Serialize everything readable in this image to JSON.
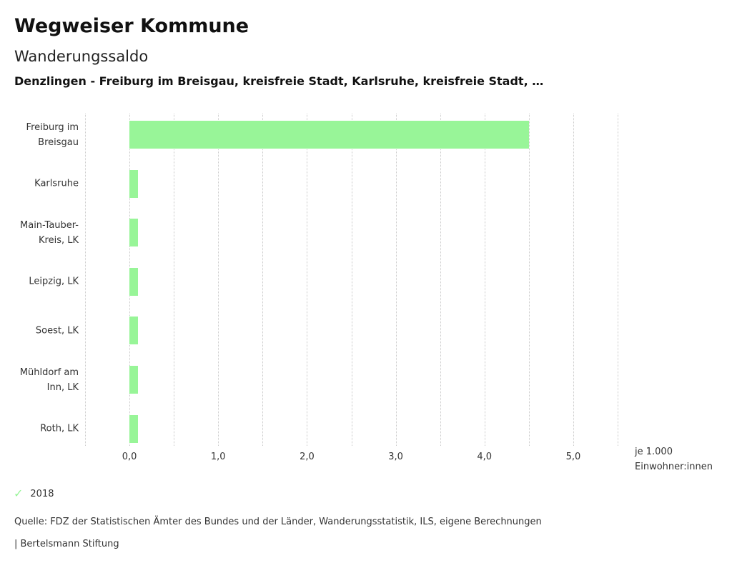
{
  "header": {
    "title": "Wegweiser Kommune",
    "subtitle": "Wanderungssaldo",
    "comparison": "Denzlingen - Freiburg im Breisgau, kreisfreie Stadt, Karlsruhe, kreisfreie Stadt, …"
  },
  "chart_data": {
    "type": "bar",
    "orientation": "horizontal",
    "title": "Wanderungssaldo",
    "categories": [
      "Freiburg im Breisgau",
      "Karlsruhe",
      "Main-Tauber-Kreis, LK",
      "Leipzig, LK",
      "Soest, LK",
      "Mühldorf am Inn, LK",
      "Roth, LK"
    ],
    "series": [
      {
        "name": "2018",
        "values": [
          4.5,
          0.1,
          0.1,
          0.1,
          0.1,
          0.1,
          0.1
        ]
      }
    ],
    "xlabel": "je 1.000 Einwohner:innen",
    "ylabel": "",
    "xlim": [
      -0.5,
      5.5
    ],
    "grid_step": 0.5,
    "grid": true,
    "x_tick_values": [
      0,
      1,
      2,
      3,
      4,
      5
    ],
    "x_ticks": [
      "0,0",
      "1,0",
      "2,0",
      "3,0",
      "4,0",
      "5,0"
    ],
    "legend_position": "bottom-left"
  },
  "axis_caption": {
    "line1": "je 1.000",
    "line2": "Einwohner:innen"
  },
  "legend": {
    "check_icon": "✓",
    "label": "2018"
  },
  "footer": {
    "source": "Quelle: FDZ der Statistischen Ämter des Bundes und der Länder, Wanderungsstatistik, ILS, eigene Berechnungen",
    "brand": "| Bertelsmann Stiftung"
  },
  "colors": {
    "bar": "#98f598",
    "grid": "#c9c9c9",
    "text": "#333333",
    "title": "#111111"
  }
}
